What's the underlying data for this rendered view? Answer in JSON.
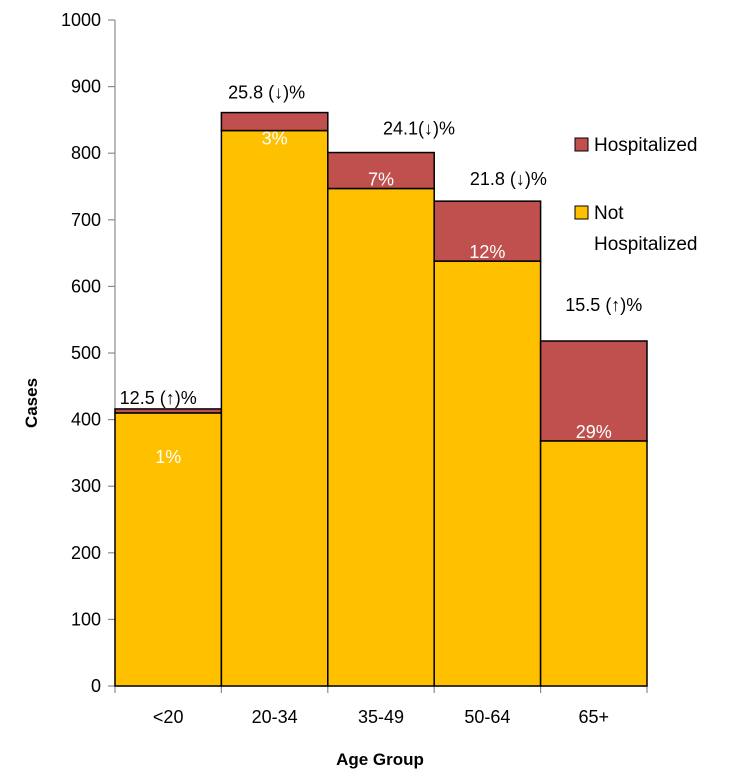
{
  "chart_data": {
    "type": "bar",
    "xlabel": "Age Group",
    "ylabel": "Cases",
    "ylim": [
      0,
      1000
    ],
    "yticks": [
      "0",
      "100",
      "200",
      "300",
      "400",
      "500",
      "600",
      "700",
      "800",
      "900",
      "1000"
    ],
    "categories": [
      "<20",
      "20-34",
      "35-49",
      "50-64",
      "65+"
    ],
    "series": [
      {
        "name": "Not Hospitalized",
        "color": "#FFC000",
        "values": [
          410,
          834,
          747,
          638,
          368
        ]
      },
      {
        "name": "Hospitalized",
        "color": "#C0504D",
        "values": [
          6,
          27,
          54,
          90,
          150
        ]
      }
    ],
    "bar_labels": [
      "1%",
      "3%",
      "7%",
      "12%",
      "29%"
    ],
    "top_labels": [
      "12.5 (↑)%",
      "25.8 (↓)%",
      "24.1(↓)%",
      "21.8 (↓)%",
      "15.5 (↑)%"
    ],
    "legend": {
      "position": "right",
      "items": [
        {
          "label": "Hospitalized",
          "color": "#C0504D"
        },
        {
          "label_lines": [
            "Not",
            "Hospitalized"
          ],
          "color": "#FFC000"
        }
      ]
    },
    "grid": false
  }
}
